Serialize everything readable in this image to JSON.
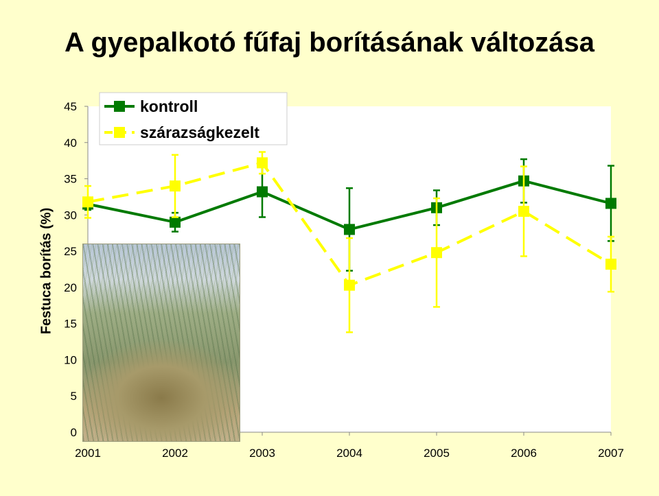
{
  "chart_data": {
    "type": "line",
    "title": "A gyepalkotó fűfaj borításának változása",
    "xlabel": "",
    "ylabel": "Festuca borítás (%)",
    "x": [
      "2001",
      "2002",
      "2003",
      "2004",
      "2005",
      "2006",
      "2007"
    ],
    "ylim": [
      0,
      45
    ],
    "yticks": [
      "0",
      "5",
      "10",
      "15",
      "20",
      "25",
      "30",
      "35",
      "40",
      "45"
    ],
    "grid": false,
    "legend_position": "top-left",
    "series": [
      {
        "name": "kontroll",
        "color": "#007a00",
        "line_style": "solid",
        "values": [
          31.5,
          29.0,
          33.2,
          28.0,
          31.0,
          34.7,
          31.6
        ],
        "error": [
          0.8,
          1.3,
          3.5,
          5.7,
          2.4,
          3.0,
          5.2
        ]
      },
      {
        "name": "szárazságkezelt",
        "color": "#ffff00",
        "line_style": "dashed",
        "values": [
          31.8,
          34.0,
          37.2,
          20.3,
          24.8,
          30.5,
          23.2
        ],
        "error": [
          2.2,
          4.3,
          1.5,
          6.5,
          7.5,
          6.2,
          3.8
        ]
      }
    ]
  },
  "photo": {
    "icon": "grass-tussock-photo"
  }
}
